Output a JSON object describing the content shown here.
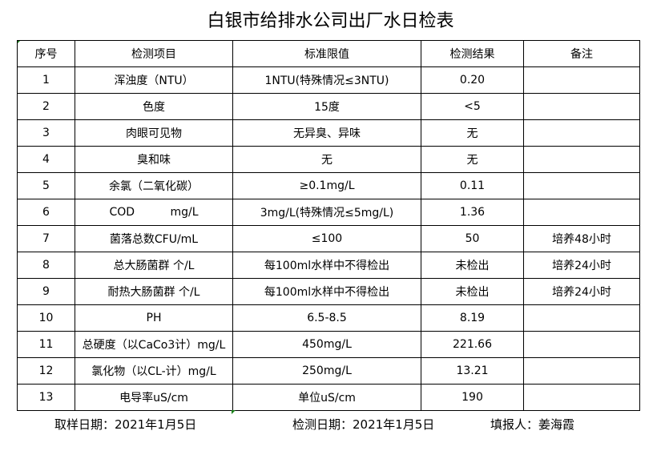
{
  "title": "白银市给排水公司出厂水日检表",
  "headers": [
    "序号",
    "检测项目",
    "标准限值",
    "检测结果",
    "备注"
  ],
  "rows": [
    [
      "1",
      "浑浊度（NTU）",
      "1NTU(特殊情况≤3NTU)",
      "0.20",
      ""
    ],
    [
      "2",
      "色度",
      "15度",
      "<5",
      ""
    ],
    [
      "3",
      "肉眼可见物",
      "无异臭、异味",
      "无",
      ""
    ],
    [
      "4",
      "臭和味",
      "无",
      "无",
      ""
    ],
    [
      "5",
      "余氯（二氧化碳）",
      "≥0.1mg/L",
      "0.11",
      ""
    ],
    [
      "6",
      "COD          mg/L",
      "3mg/L(特殊情况≤5mg/L)",
      "1.36",
      ""
    ],
    [
      "7",
      "菌落总数CFU/mL",
      "≤100",
      "50",
      "培养48小时"
    ],
    [
      "8",
      "总大肠菌群 个/L",
      "每100ml水样中不得检出",
      "未检出",
      "培养24小时"
    ],
    [
      "9",
      "耐热大肠菌群 个/L",
      "每100ml水样中不得检出",
      "未检出",
      "培养24小时"
    ],
    [
      "10",
      "PH",
      "6.5-8.5",
      "8.19",
      ""
    ],
    [
      "11",
      "总硬度（以CaCo3计）mg/L",
      "450mg/L",
      "221.66",
      ""
    ],
    [
      "12",
      "氯化物（以CL-计）mg/L",
      "250mg/L",
      "13.21",
      ""
    ],
    [
      "13",
      "电导率uS/cm",
      "单位uS/cm",
      "190",
      ""
    ]
  ],
  "footer": {
    "sample_date": "取样日期：2021年1月5日",
    "test_date": "检测日期：2021年1月5日",
    "reporter": "填报人：姜海霞"
  }
}
